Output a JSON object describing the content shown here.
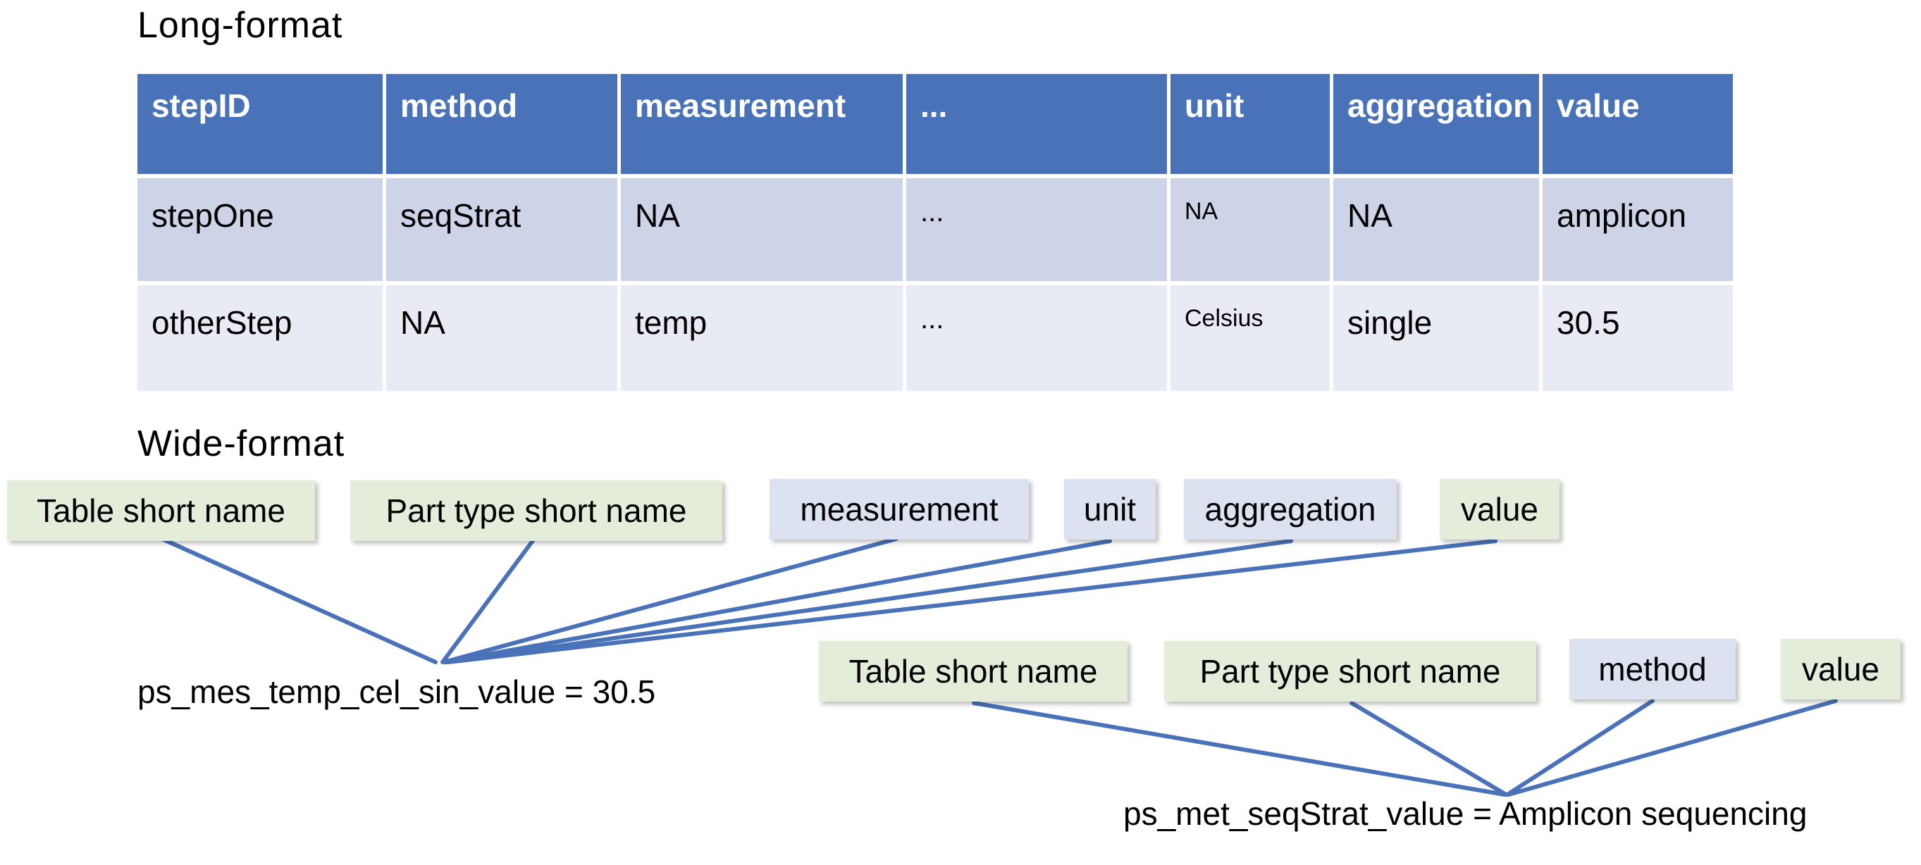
{
  "long_format": {
    "title": "Long-format",
    "headers": [
      "stepID",
      "method",
      "measurement",
      "...",
      "unit",
      "aggregation",
      "value"
    ],
    "rows": [
      [
        "stepOne",
        "seqStrat",
        "NA",
        "...",
        "NA",
        "NA",
        "amplicon"
      ],
      [
        "otherStep",
        "NA",
        "temp",
        "...",
        "Celsius",
        "single",
        "30.5"
      ]
    ]
  },
  "wide_format": {
    "title": "Wide-format",
    "group1": {
      "boxes": [
        "Table short name",
        "Part type short name",
        "measurement",
        "unit",
        "aggregation",
        "value"
      ],
      "formula": "ps_mes_temp_cel_sin_value = 30.5"
    },
    "group2": {
      "boxes": [
        "Table short name",
        "Part type short name",
        "method",
        "value"
      ],
      "formula": "ps_met_seqStrat_value = Amplicon sequencing"
    }
  },
  "colors": {
    "header_blue": "#4a72b8",
    "row_dark": "#cdd4e8",
    "row_light": "#e8ebf4",
    "box_green": "#e3edda",
    "box_blue": "#dce2ef"
  }
}
